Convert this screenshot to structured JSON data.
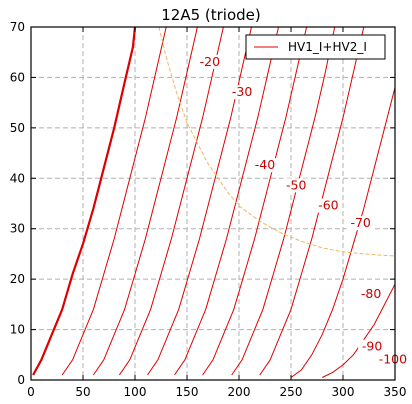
{
  "chart_data": {
    "type": "line",
    "title": "12A5 (triode)",
    "xlabel": "",
    "ylabel": "",
    "xlim": [
      0,
      350
    ],
    "ylim": [
      0,
      70
    ],
    "x_ticks": [
      0,
      50,
      100,
      150,
      200,
      250,
      300,
      350
    ],
    "y_ticks": [
      0,
      10,
      20,
      30,
      40,
      50,
      60,
      70
    ],
    "grid": true,
    "legend": {
      "position": "top-right",
      "entries": [
        "HV1_I+HV2_I"
      ]
    },
    "colors": {
      "curves": "#dd0000",
      "dissipation": "#f2b85e",
      "grid": "#b0b0b0"
    },
    "series": [
      {
        "name": "0",
        "label": "",
        "points": [
          [
            2,
            1
          ],
          [
            10,
            4
          ],
          [
            20,
            9
          ],
          [
            30,
            14
          ],
          [
            40,
            21
          ],
          [
            50,
            27
          ],
          [
            60,
            34
          ],
          [
            70,
            42
          ],
          [
            80,
            50
          ],
          [
            90,
            59
          ],
          [
            98,
            66
          ],
          [
            100,
            70
          ]
        ]
      },
      {
        "name": "-10",
        "label": "",
        "points": [
          [
            30,
            1
          ],
          [
            40,
            4
          ],
          [
            50,
            9
          ],
          [
            60,
            14
          ],
          [
            70,
            21
          ],
          [
            80,
            28
          ],
          [
            90,
            36
          ],
          [
            100,
            44
          ],
          [
            110,
            52
          ],
          [
            120,
            61
          ],
          [
            130,
            70
          ]
        ]
      },
      {
        "name": "-20",
        "label": "-20",
        "points": [
          [
            60,
            1
          ],
          [
            70,
            4
          ],
          [
            80,
            9
          ],
          [
            90,
            14
          ],
          [
            100,
            21
          ],
          [
            110,
            28
          ],
          [
            120,
            36
          ],
          [
            130,
            44
          ],
          [
            140,
            52
          ],
          [
            150,
            61
          ],
          [
            160,
            70
          ]
        ]
      },
      {
        "name": "-30",
        "label": "-30",
        "points": [
          [
            85,
            1
          ],
          [
            95,
            4
          ],
          [
            105,
            9
          ],
          [
            115,
            14
          ],
          [
            125,
            21
          ],
          [
            135,
            28
          ],
          [
            145,
            36
          ],
          [
            155,
            44
          ],
          [
            165,
            52
          ],
          [
            175,
            61
          ],
          [
            185,
            70
          ]
        ]
      },
      {
        "name": "-40",
        "label": "-40",
        "points": [
          [
            112,
            1
          ],
          [
            122,
            4
          ],
          [
            132,
            9
          ],
          [
            142,
            14
          ],
          [
            152,
            21
          ],
          [
            162,
            28
          ],
          [
            172,
            36
          ],
          [
            182,
            44
          ],
          [
            192,
            52
          ],
          [
            202,
            61
          ],
          [
            212,
            70
          ]
        ]
      },
      {
        "name": "-50",
        "label": "-50",
        "points": [
          [
            138,
            1
          ],
          [
            148,
            4
          ],
          [
            158,
            9
          ],
          [
            168,
            14
          ],
          [
            178,
            21
          ],
          [
            188,
            28
          ],
          [
            198,
            36
          ],
          [
            208,
            44
          ],
          [
            218,
            52
          ],
          [
            228,
            61
          ],
          [
            238,
            70
          ]
        ]
      },
      {
        "name": "-60",
        "label": "-60",
        "points": [
          [
            165,
            1
          ],
          [
            175,
            4
          ],
          [
            185,
            9
          ],
          [
            195,
            14
          ],
          [
            205,
            21
          ],
          [
            215,
            28
          ],
          [
            225,
            36
          ],
          [
            235,
            44
          ],
          [
            245,
            52
          ],
          [
            255,
            61
          ],
          [
            265,
            70
          ]
        ]
      },
      {
        "name": "-70",
        "label": "-70",
        "points": [
          [
            193,
            1
          ],
          [
            203,
            4
          ],
          [
            213,
            9
          ],
          [
            223,
            14
          ],
          [
            233,
            21
          ],
          [
            243,
            28
          ],
          [
            253,
            36
          ],
          [
            263,
            44
          ],
          [
            273,
            52
          ],
          [
            283,
            61
          ],
          [
            292,
            70
          ]
        ]
      },
      {
        "name": "-80",
        "label": "-80",
        "points": [
          [
            220,
            1
          ],
          [
            230,
            4
          ],
          [
            240,
            9
          ],
          [
            250,
            14
          ],
          [
            260,
            21
          ],
          [
            270,
            28
          ],
          [
            280,
            36
          ],
          [
            290,
            44
          ],
          [
            300,
            52
          ],
          [
            310,
            61
          ],
          [
            320,
            70
          ]
        ]
      },
      {
        "name": "-90",
        "label": "-90",
        "points": [
          [
            250,
            0.5
          ],
          [
            260,
            2
          ],
          [
            270,
            5
          ],
          [
            280,
            9
          ],
          [
            290,
            14
          ],
          [
            300,
            20
          ],
          [
            310,
            27
          ],
          [
            320,
            34
          ],
          [
            330,
            42
          ],
          [
            340,
            50
          ],
          [
            350,
            58
          ]
        ]
      },
      {
        "name": "-100",
        "label": "-100",
        "points": [
          [
            280,
            0.5
          ],
          [
            290,
            1.5
          ],
          [
            300,
            3
          ],
          [
            310,
            5
          ],
          [
            320,
            8
          ],
          [
            330,
            11
          ],
          [
            340,
            15
          ],
          [
            350,
            19
          ]
        ]
      }
    ],
    "dissipation_curve": [
      [
        123,
        70
      ],
      [
        130,
        64
      ],
      [
        140,
        57
      ],
      [
        150,
        51
      ],
      [
        160,
        47
      ],
      [
        170,
        43
      ],
      [
        180,
        40
      ],
      [
        190,
        37
      ],
      [
        200,
        34.5
      ],
      [
        220,
        31.5
      ],
      [
        240,
        29.2
      ],
      [
        260,
        27.5
      ],
      [
        280,
        26.2
      ],
      [
        300,
        25.4
      ],
      [
        320,
        25
      ],
      [
        340,
        24.7
      ],
      [
        350,
        24.6
      ]
    ],
    "annotations": [
      {
        "text": "-20",
        "x": 172,
        "y": 62.5
      },
      {
        "text": "-30",
        "x": 203,
        "y": 56.5
      },
      {
        "text": "-40",
        "x": 225,
        "y": 42
      },
      {
        "text": "-50",
        "x": 255,
        "y": 38
      },
      {
        "text": "-60",
        "x": 286,
        "y": 34
      },
      {
        "text": "-70",
        "x": 317,
        "y": 30.5
      },
      {
        "text": "-80",
        "x": 327,
        "y": 16.5
      },
      {
        "text": "-90",
        "x": 328,
        "y": 6
      },
      {
        "text": "-100",
        "x": 348,
        "y": 3.5
      }
    ]
  }
}
